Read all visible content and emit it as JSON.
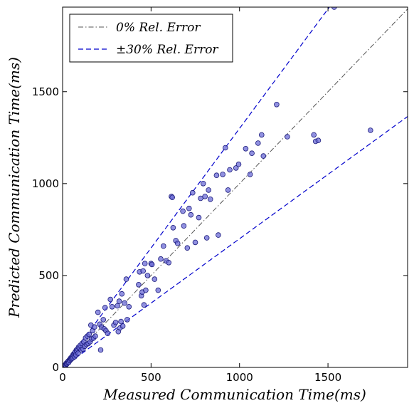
{
  "chart_data": {
    "type": "scatter",
    "xlabel": "Measured Communication Time(ms)",
    "ylabel": "Predicted Communication Time(ms)",
    "xlim": [
      0,
      1950
    ],
    "ylim": [
      0,
      1960
    ],
    "xticks": [
      0,
      500,
      1000,
      1500
    ],
    "yticks": [
      0,
      500,
      1000,
      1500
    ],
    "xtick_labels": [
      "0",
      "500",
      "1000",
      "1500"
    ],
    "ytick_labels": [
      "0",
      "500",
      "1000",
      "1500"
    ],
    "legend_position": "top-left",
    "grid": false,
    "series": [
      {
        "name": "0% Rel. Error",
        "kind": "reference-line",
        "slope": 1.0,
        "style": "dash-dot",
        "color": "#555555"
      },
      {
        "name": "±30% Rel. Error",
        "kind": "reference-lines",
        "slopes": [
          1.3,
          0.7
        ],
        "style": "dashed",
        "color": "#0000cc"
      },
      {
        "kind": "scatter",
        "marker_fill": "#6b6bd6",
        "marker_edge": "#1a1a7a",
        "points": [
          [
            5,
            3
          ],
          [
            8,
            6
          ],
          [
            10,
            9
          ],
          [
            12,
            10
          ],
          [
            15,
            14
          ],
          [
            18,
            12
          ],
          [
            20,
            22
          ],
          [
            22,
            18
          ],
          [
            25,
            20
          ],
          [
            28,
            30
          ],
          [
            30,
            25
          ],
          [
            32,
            35
          ],
          [
            35,
            28
          ],
          [
            38,
            40
          ],
          [
            40,
            42
          ],
          [
            42,
            38
          ],
          [
            45,
            50
          ],
          [
            48,
            44
          ],
          [
            50,
            55
          ],
          [
            52,
            48
          ],
          [
            55,
            60
          ],
          [
            58,
            52
          ],
          [
            60,
            70
          ],
          [
            62,
            65
          ],
          [
            65,
            75
          ],
          [
            68,
            58
          ],
          [
            70,
            80
          ],
          [
            72,
            85
          ],
          [
            75,
            68
          ],
          [
            78,
            95
          ],
          [
            80,
            90
          ],
          [
            85,
            100
          ],
          [
            88,
            78
          ],
          [
            90,
            110
          ],
          [
            95,
            105
          ],
          [
            100,
            120
          ],
          [
            105,
            95
          ],
          [
            110,
            130
          ],
          [
            115,
            100
          ],
          [
            120,
            140
          ],
          [
            125,
            115
          ],
          [
            130,
            160
          ],
          [
            135,
            125
          ],
          [
            140,
            170
          ],
          [
            145,
            130
          ],
          [
            150,
            180
          ],
          [
            155,
            140
          ],
          [
            160,
            230
          ],
          [
            165,
            155
          ],
          [
            170,
            200
          ],
          [
            175,
            160
          ],
          [
            180,
            220
          ],
          [
            185,
            170
          ],
          [
            200,
            300
          ],
          [
            210,
            235
          ],
          [
            215,
            95
          ],
          [
            220,
            220
          ],
          [
            230,
            260
          ],
          [
            235,
            210
          ],
          [
            240,
            325
          ],
          [
            245,
            200
          ],
          [
            255,
            185
          ],
          [
            270,
            370
          ],
          [
            280,
            330
          ],
          [
            290,
            230
          ],
          [
            300,
            245
          ],
          [
            310,
            335
          ],
          [
            315,
            195
          ],
          [
            320,
            360
          ],
          [
            325,
            215
          ],
          [
            330,
            250
          ],
          [
            335,
            400
          ],
          [
            340,
            225
          ],
          [
            350,
            350
          ],
          [
            360,
            480
          ],
          [
            365,
            260
          ],
          [
            375,
            330
          ],
          [
            430,
            450
          ],
          [
            435,
            520
          ],
          [
            445,
            390
          ],
          [
            450,
            410
          ],
          [
            455,
            525
          ],
          [
            460,
            340
          ],
          [
            465,
            565
          ],
          [
            470,
            420
          ],
          [
            480,
            500
          ],
          [
            500,
            565
          ],
          [
            505,
            560
          ],
          [
            520,
            480
          ],
          [
            540,
            420
          ],
          [
            555,
            590
          ],
          [
            570,
            660
          ],
          [
            585,
            580
          ],
          [
            600,
            570
          ],
          [
            615,
            930
          ],
          [
            620,
            925
          ],
          [
            625,
            760
          ],
          [
            640,
            690
          ],
          [
            650,
            675
          ],
          [
            680,
            850
          ],
          [
            685,
            770
          ],
          [
            705,
            650
          ],
          [
            715,
            865
          ],
          [
            725,
            830
          ],
          [
            735,
            950
          ],
          [
            750,
            680
          ],
          [
            770,
            815
          ],
          [
            780,
            920
          ],
          [
            795,
            1000
          ],
          [
            805,
            930
          ],
          [
            815,
            705
          ],
          [
            825,
            965
          ],
          [
            835,
            915
          ],
          [
            870,
            1045
          ],
          [
            880,
            720
          ],
          [
            905,
            1050
          ],
          [
            920,
            1195
          ],
          [
            935,
            965
          ],
          [
            945,
            1075
          ],
          [
            980,
            1085
          ],
          [
            995,
            1105
          ],
          [
            1035,
            1190
          ],
          [
            1060,
            1050
          ],
          [
            1070,
            1165
          ],
          [
            1105,
            1220
          ],
          [
            1125,
            1265
          ],
          [
            1135,
            1150
          ],
          [
            1210,
            1430
          ],
          [
            1270,
            1255
          ],
          [
            1420,
            1265
          ],
          [
            1430,
            1230
          ],
          [
            1445,
            1235
          ],
          [
            1535,
            1960
          ],
          [
            1740,
            1290
          ]
        ]
      }
    ],
    "legend": [
      {
        "label": "0% Rel. Error",
        "style": "dash-dot",
        "color": "#555555"
      },
      {
        "label": "±30% Rel. Error",
        "style": "dashed",
        "color": "#0000cc"
      }
    ]
  }
}
